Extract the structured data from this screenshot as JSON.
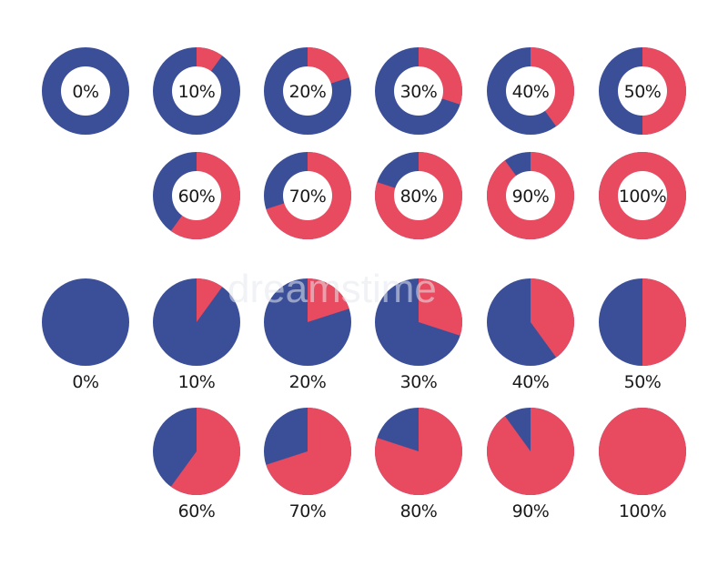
{
  "watermark": "dreamstime",
  "colors": {
    "base": "#3b4f98",
    "fill": "#e84a5f",
    "text": "#1a1a1a",
    "hole": "#ffffff"
  },
  "chart_data": [
    {
      "type": "pie",
      "style": "donut",
      "label_position": "center",
      "items": [
        {
          "label": "0%",
          "value": 0
        },
        {
          "label": "10%",
          "value": 10
        },
        {
          "label": "20%",
          "value": 20
        },
        {
          "label": "30%",
          "value": 30
        },
        {
          "label": "40%",
          "value": 40
        },
        {
          "label": "50%",
          "value": 50
        },
        {
          "label": "60%",
          "value": 60
        },
        {
          "label": "70%",
          "value": 70
        },
        {
          "label": "80%",
          "value": 80
        },
        {
          "label": "90%",
          "value": 90
        },
        {
          "label": "100%",
          "value": 100
        }
      ]
    },
    {
      "type": "pie",
      "style": "solid",
      "label_position": "below",
      "items": [
        {
          "label": "0%",
          "value": 0
        },
        {
          "label": "10%",
          "value": 10
        },
        {
          "label": "20%",
          "value": 20
        },
        {
          "label": "30%",
          "value": 30
        },
        {
          "label": "40%",
          "value": 40
        },
        {
          "label": "50%",
          "value": 50
        },
        {
          "label": "60%",
          "value": 60
        },
        {
          "label": "70%",
          "value": 70
        },
        {
          "label": "80%",
          "value": 80
        },
        {
          "label": "90%",
          "value": 90
        },
        {
          "label": "100%",
          "value": 100
        }
      ]
    }
  ]
}
